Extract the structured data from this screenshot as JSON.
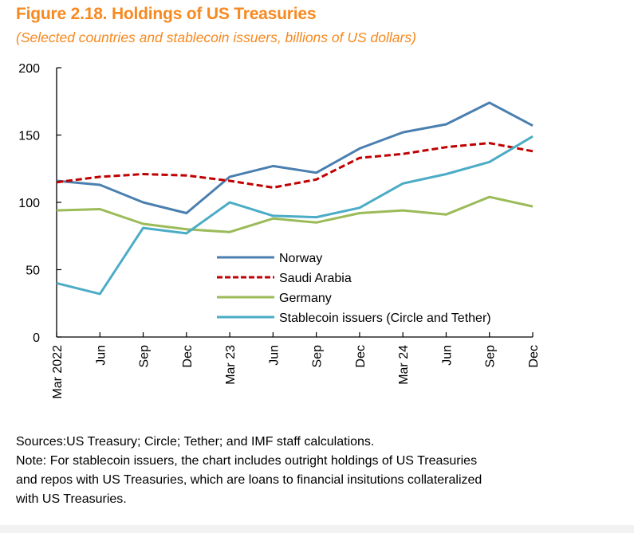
{
  "title": "Figure 2.18.  Holdings of US Treasuries",
  "subtitle": "(Selected countries and stablecoin issuers, billions of US dollars)",
  "notes": {
    "sources": "Sources:US Treasury; Circle; Tether; and IMF staff calculations.",
    "note_lines": [
      "Note: For stablecoin issuers, the chart includes outright holdings of US Treasuries",
      "and repos with US Treasuries, which are loans to financial insitutions collateralized",
      "with US Treasuries."
    ]
  },
  "chart_data": {
    "type": "line",
    "title": "Figure 2.18.  Holdings of US Treasuries",
    "subtitle": "(Selected countries and stablecoin issuers, billions of US dollars)",
    "xlabel": "",
    "ylabel": "",
    "x": [
      "Mar 2022",
      "Jun",
      "Sep",
      "Dec",
      "Mar 23",
      "Jun",
      "Sep",
      "Dec",
      "Mar 24",
      "Jun",
      "Sep",
      "Dec"
    ],
    "ylim": [
      0,
      200
    ],
    "yticks": [
      0,
      50,
      100,
      150,
      200
    ],
    "grid": false,
    "legend_position": "center-right",
    "series": [
      {
        "name": "Norway",
        "color": "#4a7fb0",
        "style": "solid",
        "values": [
          116,
          113,
          100,
          92,
          119,
          127,
          122,
          140,
          152,
          158,
          174,
          157
        ]
      },
      {
        "name": "Saudi Arabia",
        "color": "#c00000",
        "style": "dashed",
        "values": [
          115,
          119,
          121,
          120,
          116,
          111,
          117,
          133,
          136,
          141,
          144,
          138
        ]
      },
      {
        "name": "Germany",
        "color": "#9bbb59",
        "style": "solid",
        "values": [
          94,
          95,
          84,
          80,
          78,
          88,
          85,
          92,
          94,
          91,
          104,
          97
        ]
      },
      {
        "name": "Stablecoin issuers (Circle and Tether)",
        "color": "#4bacc6",
        "style": "solid",
        "values": [
          40,
          32,
          81,
          77,
          100,
          90,
          89,
          96,
          114,
          121,
          130,
          149
        ]
      }
    ]
  }
}
